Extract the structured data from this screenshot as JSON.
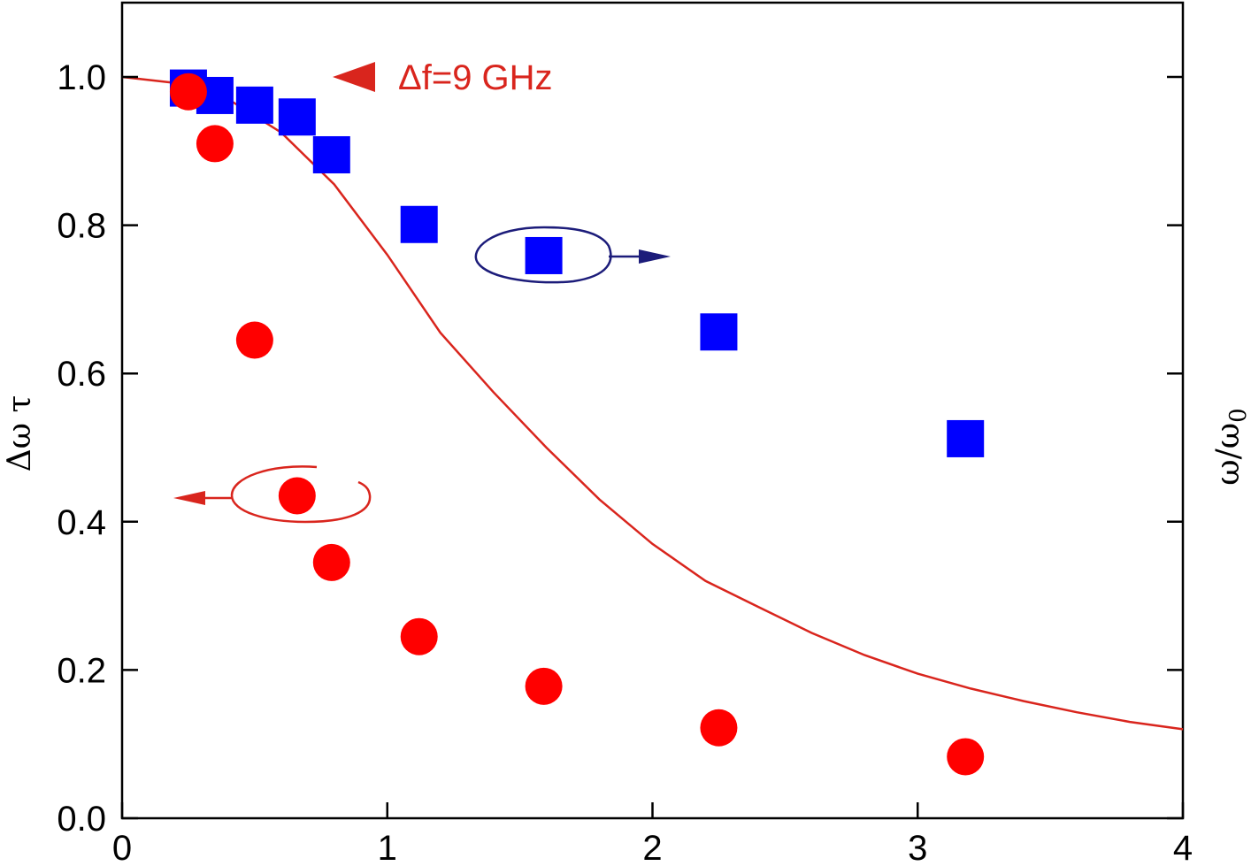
{
  "colors": {
    "circles": "#ff0000",
    "squares": "#0000ff",
    "curve": "#d9251d",
    "red_arrow": "#d9251d",
    "blue_arrow": "#1c1c7a",
    "axis": "#000000"
  },
  "chart_data": {
    "type": "scatter",
    "title": "",
    "xlim": [
      0,
      4
    ],
    "ylim": [
      0,
      1.0
    ],
    "ylim_right": [
      0,
      1.0
    ],
    "grid": false,
    "x_ticks": [
      0,
      1,
      2,
      3,
      4
    ],
    "x_tick_labels": [
      "0",
      "1",
      "2",
      "3",
      "4"
    ],
    "y_ticks": [
      0,
      0.2,
      0.4,
      0.6,
      0.8,
      1.0
    ],
    "y_tick_labels": [
      "0.0",
      "0.2",
      "0.4",
      "0.6",
      "0.8",
      "1.0"
    ],
    "ylabel": "Δω τ",
    "ylabel_right_main": "ω/ω",
    "ylabel_right_sub": "0",
    "series": [
      {
        "marker": "circle",
        "axis": "left",
        "points": [
          {
            "x": 0.25,
            "y": 0.98
          },
          {
            "x": 0.35,
            "y": 0.91
          },
          {
            "x": 0.5,
            "y": 0.645
          },
          {
            "x": 0.66,
            "y": 0.435
          },
          {
            "x": 0.79,
            "y": 0.345
          },
          {
            "x": 1.12,
            "y": 0.245
          },
          {
            "x": 1.59,
            "y": 0.178
          },
          {
            "x": 2.25,
            "y": 0.122
          },
          {
            "x": 3.18,
            "y": 0.083
          }
        ]
      },
      {
        "marker": "square",
        "axis": "right",
        "points": [
          {
            "x": 0.25,
            "y": 0.985
          },
          {
            "x": 0.35,
            "y": 0.975
          },
          {
            "x": 0.5,
            "y": 0.962
          },
          {
            "x": 0.66,
            "y": 0.946
          },
          {
            "x": 0.79,
            "y": 0.895
          },
          {
            "x": 1.12,
            "y": 0.801
          },
          {
            "x": 1.59,
            "y": 0.759
          },
          {
            "x": 2.25,
            "y": 0.656
          },
          {
            "x": 3.18,
            "y": 0.512
          }
        ]
      }
    ],
    "curve": {
      "points": [
        {
          "x": 0.0,
          "y": 1.0
        },
        {
          "x": 0.2,
          "y": 0.992
        },
        {
          "x": 0.4,
          "y": 0.97
        },
        {
          "x": 0.6,
          "y": 0.925
        },
        {
          "x": 0.8,
          "y": 0.855
        },
        {
          "x": 1.0,
          "y": 0.76
        },
        {
          "x": 1.2,
          "y": 0.655
        },
        {
          "x": 1.4,
          "y": 0.575
        },
        {
          "x": 1.6,
          "y": 0.5
        },
        {
          "x": 1.8,
          "y": 0.43
        },
        {
          "x": 2.0,
          "y": 0.37
        },
        {
          "x": 2.2,
          "y": 0.32
        },
        {
          "x": 2.4,
          "y": 0.285
        },
        {
          "x": 2.6,
          "y": 0.25
        },
        {
          "x": 2.8,
          "y": 0.22
        },
        {
          "x": 3.0,
          "y": 0.195
        },
        {
          "x": 3.2,
          "y": 0.175
        },
        {
          "x": 3.4,
          "y": 0.158
        },
        {
          "x": 3.6,
          "y": 0.143
        },
        {
          "x": 3.8,
          "y": 0.13
        },
        {
          "x": 4.0,
          "y": 0.12
        }
      ]
    },
    "annotations": {
      "df_label": "Δf=9 GHz"
    }
  }
}
